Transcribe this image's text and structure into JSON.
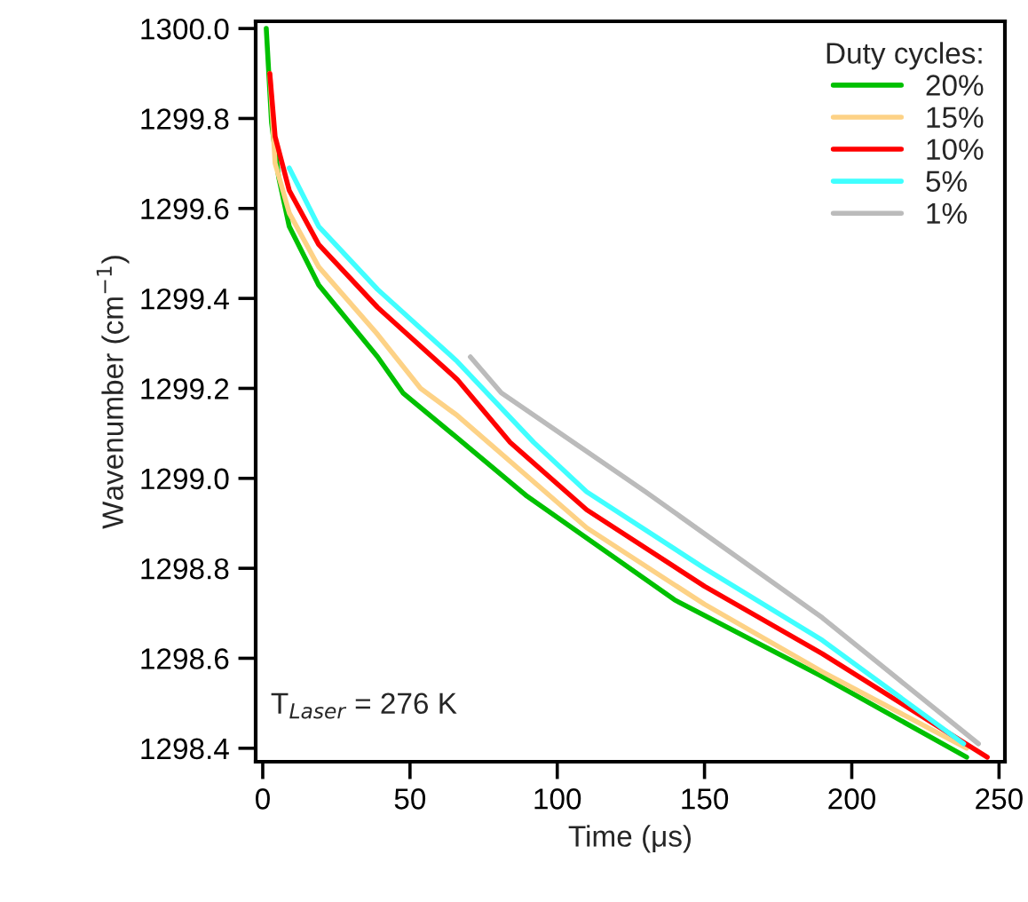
{
  "chart_data": {
    "type": "line",
    "xlabel": "Time (μs)",
    "ylabel": "Wavenumber (cm$^{−1}$)",
    "legend_title": "Duty cycles:",
    "xlim": [
      -2.4,
      252
    ],
    "ylim": [
      1298.37,
      1300.016
    ],
    "xticks": [
      0,
      50,
      100,
      150,
      200,
      250
    ],
    "yticks": [
      {
        "value": 1298.4,
        "label": "1298.4"
      },
      {
        "value": 1298.6,
        "label": "1298.6"
      },
      {
        "value": 1298.8,
        "label": "1298.8"
      },
      {
        "value": 1299.0,
        "label": "1299.0"
      },
      {
        "value": 1299.2,
        "label": "1299.2"
      },
      {
        "value": 1299.4,
        "label": "1299.4"
      },
      {
        "value": 1299.6,
        "label": "1299.6"
      },
      {
        "value": 1299.8,
        "label": "1299.8"
      },
      {
        "value": 1300.0,
        "label": "1300.0"
      }
    ],
    "grid": false,
    "legend": "top right",
    "marker": "none",
    "line_style": "solid",
    "annotations": [
      "T$_{Laser}$ = 276 K"
    ],
    "series": [
      {
        "name": "20%",
        "color": "#00c000",
        "x": [
          1.2,
          3,
          5.4,
          9,
          19,
          39,
          47.6,
          66,
          89.8,
          139.8,
          189.8,
          239
        ],
        "values": [
          1300.0,
          1299.79,
          1299.67,
          1299.56,
          1299.43,
          1299.27,
          1299.19,
          1299.09,
          1298.96,
          1298.73,
          1298.56,
          1298.38
        ]
      },
      {
        "name": "15%",
        "color": "#fdd286",
        "x": [
          2.4,
          4.2,
          9,
          19,
          39,
          53.6,
          66,
          110,
          150,
          190,
          239
        ],
        "values": [
          1299.9,
          1299.7,
          1299.59,
          1299.47,
          1299.32,
          1299.2,
          1299.14,
          1298.89,
          1298.72,
          1298.57,
          1298.4
        ]
      },
      {
        "name": "10%",
        "color": "#ff0000",
        "x": [
          2.4,
          4.2,
          9,
          19,
          39,
          66,
          84,
          110,
          150,
          190,
          246
        ],
        "values": [
          1299.9,
          1299.76,
          1299.64,
          1299.52,
          1299.38,
          1299.22,
          1299.08,
          1298.93,
          1298.76,
          1298.61,
          1298.38
        ]
      },
      {
        "name": "5%",
        "color": "#40ffff",
        "x": [
          9,
          19,
          39,
          66,
          92,
          110,
          150,
          190,
          238
        ],
        "values": [
          1299.69,
          1299.56,
          1299.42,
          1299.26,
          1299.08,
          1298.97,
          1298.8,
          1298.64,
          1298.41
        ]
      },
      {
        "name": "1%",
        "color": "#bbbbbb",
        "x": [
          70.5,
          81,
          130,
          190,
          243
        ],
        "values": [
          1299.27,
          1299.19,
          1298.97,
          1298.69,
          1298.41
        ]
      }
    ]
  }
}
